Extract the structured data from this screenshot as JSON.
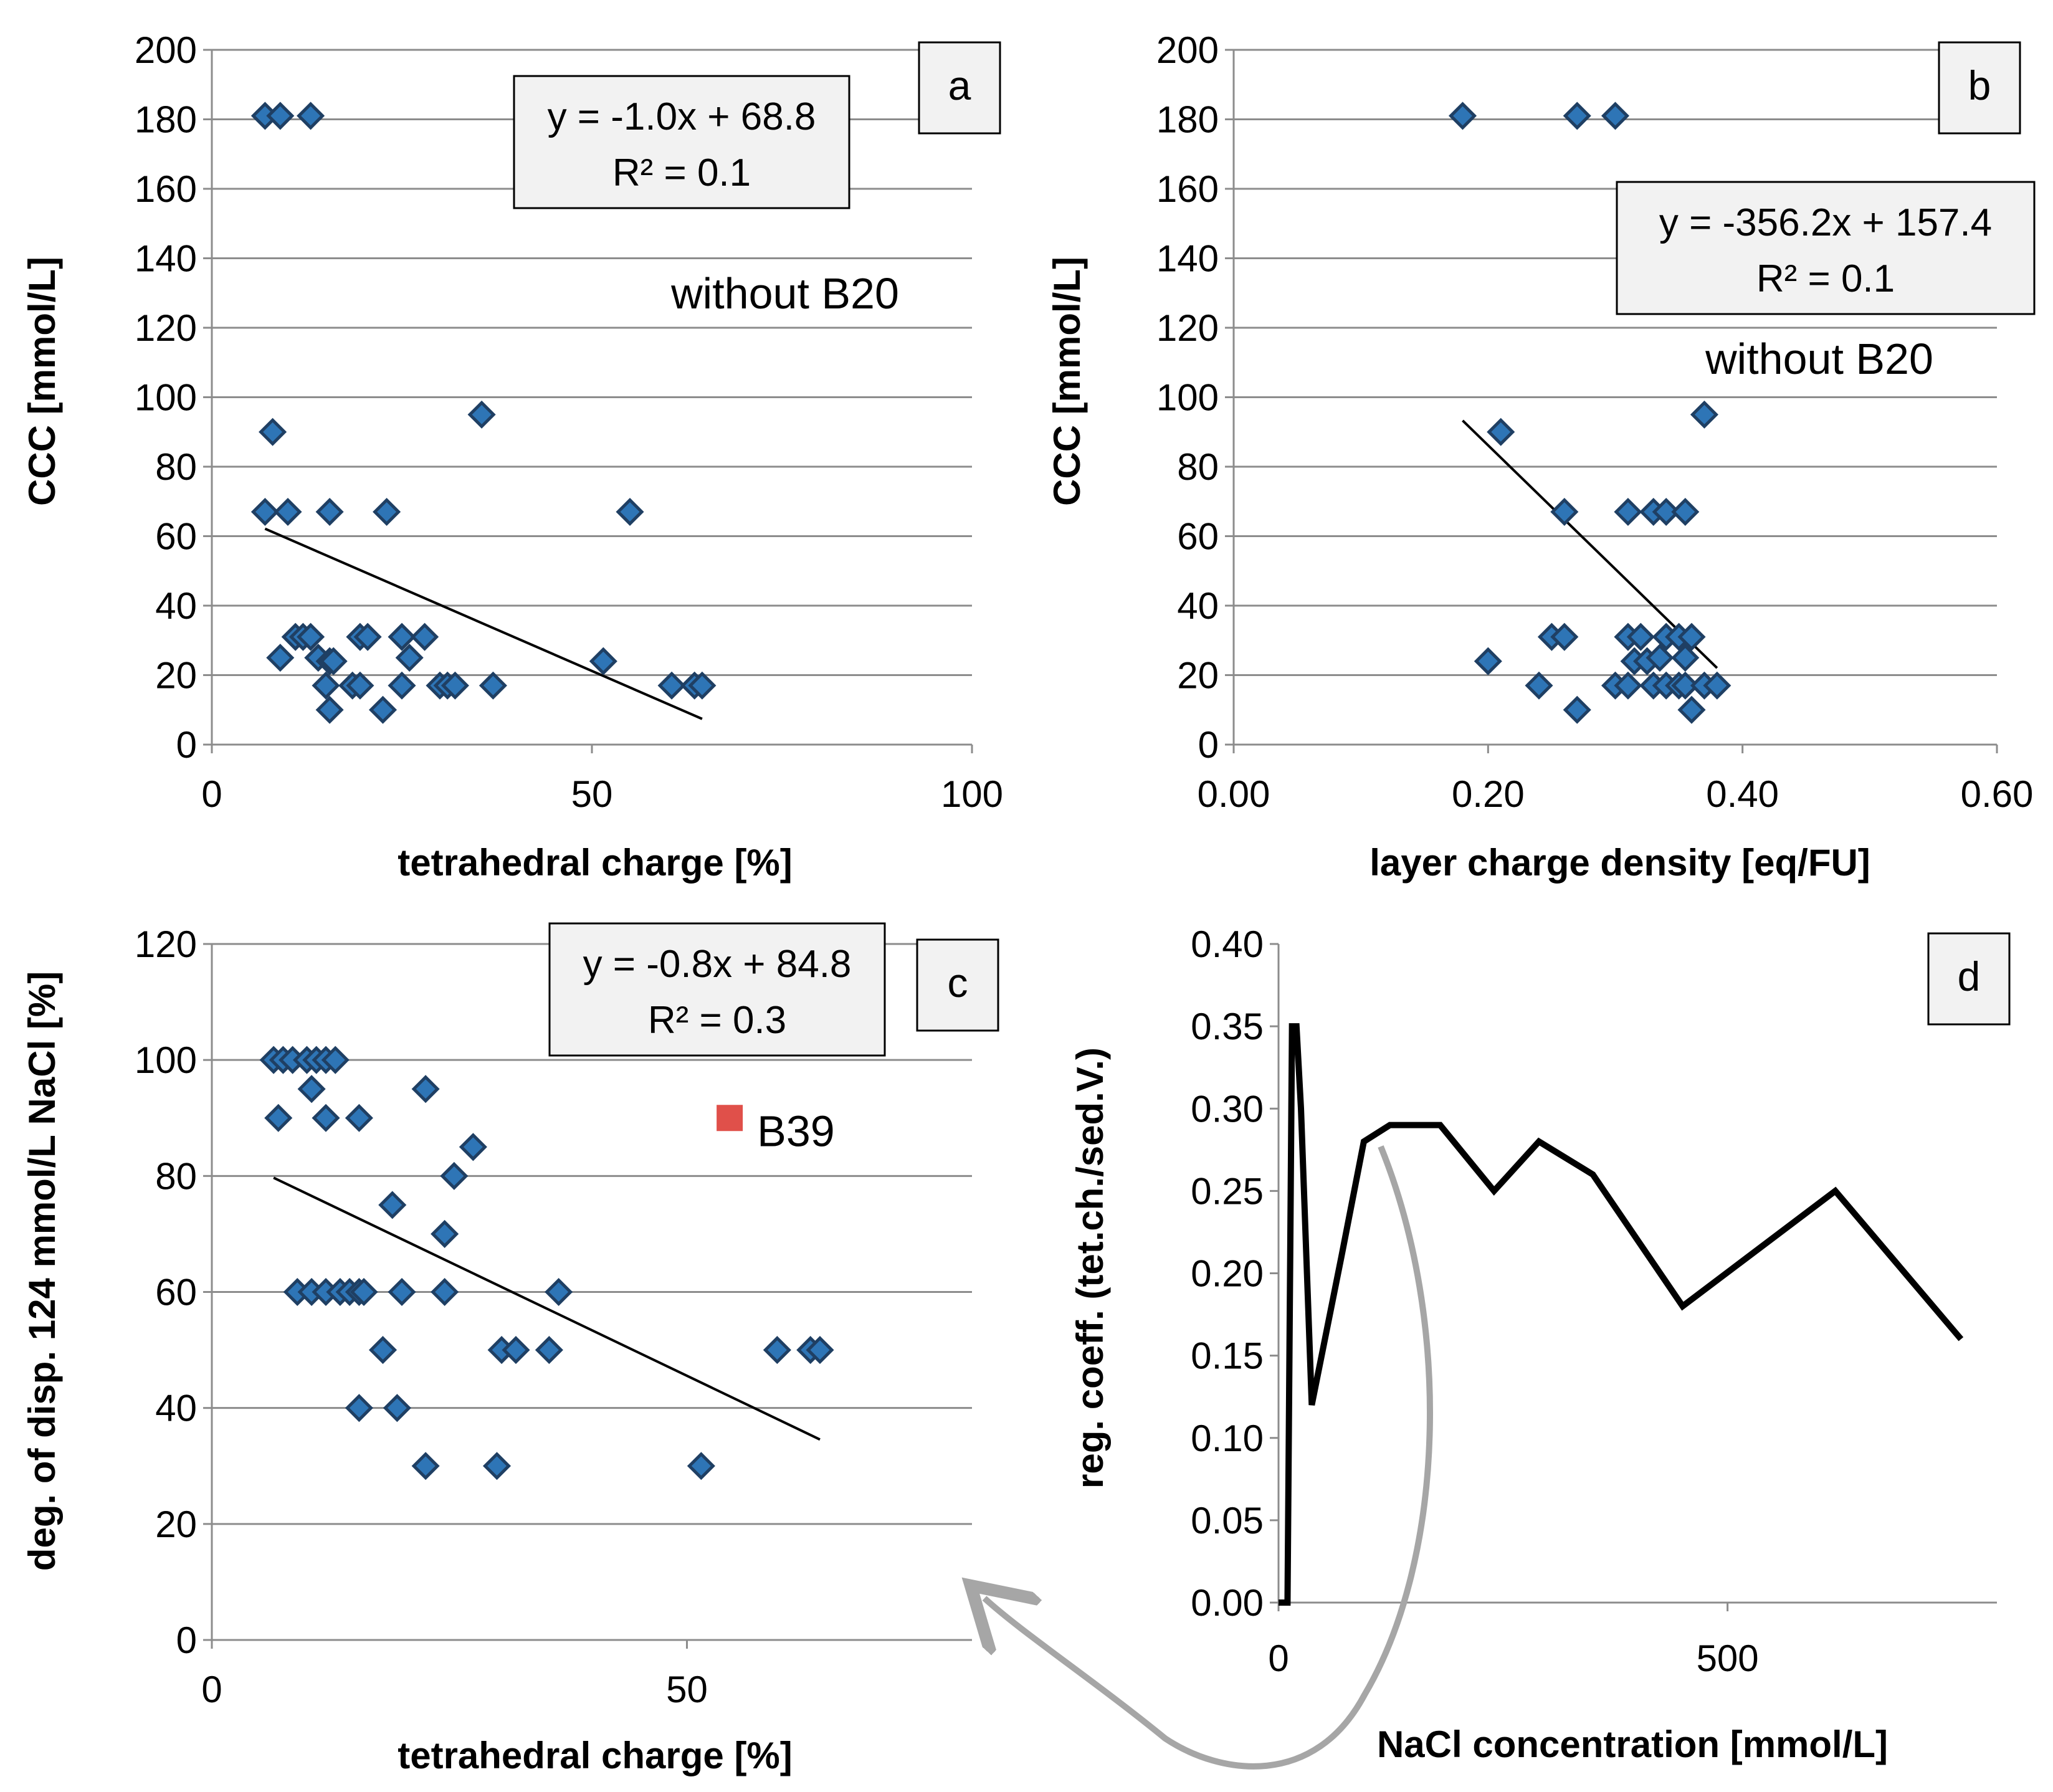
{
  "chart_data": [
    {
      "panel": "a",
      "type": "scatter",
      "title": "",
      "xlabel": "tetrahedral charge [%]",
      "ylabel": "CCC [mmol/L]",
      "xlim": [
        0,
        100
      ],
      "ylim": [
        0,
        200
      ],
      "xticks": [
        0,
        50,
        100
      ],
      "xtick_labels": [
        "0",
        "50",
        "100"
      ],
      "yticks": [
        0,
        20,
        40,
        60,
        80,
        100,
        120,
        140,
        160,
        180,
        200
      ],
      "ytick_labels": [
        "0",
        "20",
        "40",
        "60",
        "80",
        "100",
        "120",
        "140",
        "160",
        "180",
        "200"
      ],
      "grid": true,
      "points": [
        {
          "x": 7,
          "y": 181
        },
        {
          "x": 9,
          "y": 181
        },
        {
          "x": 13,
          "y": 181
        },
        {
          "x": 8,
          "y": 90
        },
        {
          "x": 35.5,
          "y": 95
        },
        {
          "x": 7,
          "y": 67
        },
        {
          "x": 10,
          "y": 67
        },
        {
          "x": 15.5,
          "y": 67
        },
        {
          "x": 23,
          "y": 67
        },
        {
          "x": 55,
          "y": 67
        },
        {
          "x": 9,
          "y": 25
        },
        {
          "x": 11,
          "y": 31
        },
        {
          "x": 12,
          "y": 31
        },
        {
          "x": 13,
          "y": 31
        },
        {
          "x": 14,
          "y": 25
        },
        {
          "x": 15.5,
          "y": 24
        },
        {
          "x": 16,
          "y": 24
        },
        {
          "x": 19.5,
          "y": 31
        },
        {
          "x": 20.5,
          "y": 31
        },
        {
          "x": 25,
          "y": 31
        },
        {
          "x": 26,
          "y": 25
        },
        {
          "x": 28,
          "y": 31
        },
        {
          "x": 51.5,
          "y": 24
        },
        {
          "x": 15,
          "y": 17
        },
        {
          "x": 18.5,
          "y": 17
        },
        {
          "x": 19.5,
          "y": 17
        },
        {
          "x": 25,
          "y": 17
        },
        {
          "x": 30,
          "y": 17
        },
        {
          "x": 31,
          "y": 17
        },
        {
          "x": 32,
          "y": 17
        },
        {
          "x": 37,
          "y": 17
        },
        {
          "x": 60.5,
          "y": 17
        },
        {
          "x": 63.5,
          "y": 17
        },
        {
          "x": 64.5,
          "y": 17
        },
        {
          "x": 15.5,
          "y": 10
        },
        {
          "x": 22.5,
          "y": 10
        }
      ],
      "trendline": {
        "slope": -0.952,
        "intercept": 68.8,
        "x_range": [
          7,
          64.5
        ]
      },
      "equation": "y = -1.0x + 68.8",
      "r_squared": "R² = 0.1",
      "annotations": [
        "without B20"
      ],
      "panel_label": "a"
    },
    {
      "panel": "b",
      "type": "scatter",
      "title": "",
      "xlabel": "layer charge density [eq/FU]",
      "ylabel": "CCC [mmol/L]",
      "xlim": [
        0,
        0.6
      ],
      "ylim": [
        0,
        200
      ],
      "xticks": [
        0,
        0.2,
        0.4,
        0.6
      ],
      "xtick_labels": [
        "0.00",
        "0.20",
        "0.40",
        "0.60"
      ],
      "yticks": [
        0,
        20,
        40,
        60,
        80,
        100,
        120,
        140,
        160,
        180,
        200
      ],
      "ytick_labels": [
        "0",
        "20",
        "40",
        "60",
        "80",
        "100",
        "120",
        "140",
        "160",
        "180",
        "200"
      ],
      "grid": true,
      "points": [
        {
          "x": 0.18,
          "y": 181
        },
        {
          "x": 0.27,
          "y": 181
        },
        {
          "x": 0.3,
          "y": 181
        },
        {
          "x": 0.21,
          "y": 90
        },
        {
          "x": 0.37,
          "y": 95
        },
        {
          "x": 0.26,
          "y": 67
        },
        {
          "x": 0.31,
          "y": 67
        },
        {
          "x": 0.33,
          "y": 67
        },
        {
          "x": 0.34,
          "y": 67
        },
        {
          "x": 0.355,
          "y": 67
        },
        {
          "x": 0.2,
          "y": 24
        },
        {
          "x": 0.25,
          "y": 31
        },
        {
          "x": 0.26,
          "y": 31
        },
        {
          "x": 0.31,
          "y": 31
        },
        {
          "x": 0.32,
          "y": 31
        },
        {
          "x": 0.315,
          "y": 24
        },
        {
          "x": 0.325,
          "y": 24
        },
        {
          "x": 0.335,
          "y": 25
        },
        {
          "x": 0.34,
          "y": 31
        },
        {
          "x": 0.35,
          "y": 31
        },
        {
          "x": 0.355,
          "y": 25
        },
        {
          "x": 0.36,
          "y": 31
        },
        {
          "x": 0.24,
          "y": 17
        },
        {
          "x": 0.3,
          "y": 17
        },
        {
          "x": 0.31,
          "y": 17
        },
        {
          "x": 0.33,
          "y": 17
        },
        {
          "x": 0.34,
          "y": 17
        },
        {
          "x": 0.35,
          "y": 17
        },
        {
          "x": 0.355,
          "y": 17
        },
        {
          "x": 0.37,
          "y": 17
        },
        {
          "x": 0.38,
          "y": 17
        },
        {
          "x": 0.27,
          "y": 10
        },
        {
          "x": 0.36,
          "y": 10
        }
      ],
      "trendline": {
        "slope": -356.2,
        "intercept": 157.4,
        "x_range": [
          0.18,
          0.38
        ]
      },
      "equation": "y = -356.2x + 157.4",
      "r_squared": "R² = 0.1",
      "annotations": [
        "without B20"
      ],
      "panel_label": "b"
    },
    {
      "panel": "c",
      "type": "scatter",
      "title": "",
      "xlabel": "tetrahedral charge [%]",
      "ylabel": "deg. of disp. 124 mmol/L NaCl [%]",
      "xlim": [
        0,
        80
      ],
      "ylim": [
        0,
        120
      ],
      "xticks": [
        0,
        50
      ],
      "xtick_labels": [
        "0",
        "50"
      ],
      "yticks": [
        0,
        20,
        40,
        60,
        80,
        100,
        120
      ],
      "ytick_labels": [
        "0",
        "20",
        "40",
        "60",
        "80",
        "100",
        "120"
      ],
      "grid": true,
      "points": [
        {
          "x": 6.5,
          "y": 100
        },
        {
          "x": 7.5,
          "y": 100
        },
        {
          "x": 8.5,
          "y": 100
        },
        {
          "x": 10,
          "y": 100
        },
        {
          "x": 11,
          "y": 100
        },
        {
          "x": 12,
          "y": 100
        },
        {
          "x": 13,
          "y": 100
        },
        {
          "x": 10.5,
          "y": 95
        },
        {
          "x": 22.5,
          "y": 95
        },
        {
          "x": 7,
          "y": 90
        },
        {
          "x": 12,
          "y": 90
        },
        {
          "x": 15.5,
          "y": 90
        },
        {
          "x": 27.5,
          "y": 85
        },
        {
          "x": 25.5,
          "y": 80
        },
        {
          "x": 19,
          "y": 75
        },
        {
          "x": 24.5,
          "y": 70
        },
        {
          "x": 9,
          "y": 60
        },
        {
          "x": 10.5,
          "y": 60
        },
        {
          "x": 12,
          "y": 60
        },
        {
          "x": 13.5,
          "y": 60
        },
        {
          "x": 14.5,
          "y": 60
        },
        {
          "x": 15.5,
          "y": 60
        },
        {
          "x": 16,
          "y": 60
        },
        {
          "x": 20,
          "y": 60
        },
        {
          "x": 24.5,
          "y": 60
        },
        {
          "x": 36.5,
          "y": 60
        },
        {
          "x": 18,
          "y": 50
        },
        {
          "x": 30.5,
          "y": 50
        },
        {
          "x": 32,
          "y": 50
        },
        {
          "x": 35.5,
          "y": 50
        },
        {
          "x": 59.5,
          "y": 50
        },
        {
          "x": 63,
          "y": 50
        },
        {
          "x": 64,
          "y": 50
        },
        {
          "x": 15.5,
          "y": 40
        },
        {
          "x": 19.5,
          "y": 40
        },
        {
          "x": 22.5,
          "y": 30
        },
        {
          "x": 30,
          "y": 30
        },
        {
          "x": 51.5,
          "y": 30
        }
      ],
      "outlier": {
        "label": "B39",
        "x": 54.5,
        "y": 90,
        "color": "#e0504a"
      },
      "trendline": {
        "slope": -0.785,
        "intercept": 84.8,
        "x_range": [
          6.5,
          64
        ]
      },
      "equation": "y = -0.8x + 84.8",
      "r_squared": "R² = 0.3",
      "panel_label": "c"
    },
    {
      "panel": "d",
      "type": "line",
      "title": "",
      "xlabel": "NaCl concentration [mmol/L]",
      "ylabel": "reg. coeff. (tet.ch./sed.V.)",
      "xlim": [
        0,
        800
      ],
      "ylim": [
        0,
        0.4
      ],
      "xticks": [
        0,
        500
      ],
      "xtick_labels": [
        "0",
        "500"
      ],
      "yticks": [
        0,
        0.05,
        0.1,
        0.15,
        0.2,
        0.25,
        0.3,
        0.35,
        0.4
      ],
      "ytick_labels": [
        "0.00",
        "0.05",
        "0.10",
        "0.15",
        "0.20",
        "0.25",
        "0.30",
        "0.35",
        "0.40"
      ],
      "grid": false,
      "series": [
        {
          "name": "reg. coeff.",
          "x": [
            0,
            10,
            15,
            20,
            25,
            37,
            70,
            95,
            124,
            180,
            240,
            290,
            350,
            450,
            620,
            760
          ],
          "y": [
            0,
            0,
            0.35,
            0.35,
            0.3,
            0.12,
            0.21,
            0.28,
            0.29,
            0.29,
            0.25,
            0.28,
            0.26,
            0.18,
            0.25,
            0.16
          ]
        }
      ],
      "panel_label": "d"
    }
  ],
  "colors": {
    "marker_fill": "#2e75b6",
    "marker_stroke": "#1f3f63",
    "outlier": "#e0504a",
    "grid": "#8c8c8c",
    "arrow": "#a6a6a6",
    "label_box": "#f2f2f2"
  }
}
